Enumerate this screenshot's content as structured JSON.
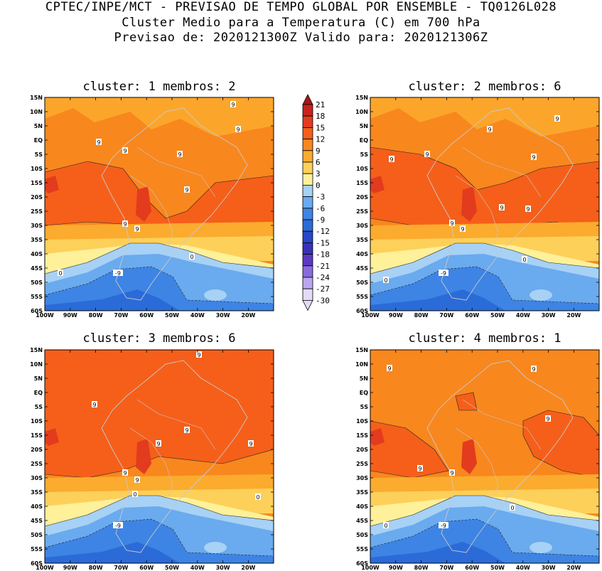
{
  "header": {
    "line1": "CPTEC/INPE/MCT - PREVISAO DE TEMPO GLOBAL POR ENSEMBLE - TQ0126L028",
    "line2": "Cluster Medio para a Temperatura (C) em 700 hPa",
    "line3": "Previsao de: 2020121300Z   Valido para: 2020121306Z"
  },
  "panels": [
    {
      "title": "cluster: 1  membros: 2"
    },
    {
      "title": "cluster: 2  membros: 6"
    },
    {
      "title": "cluster: 3  membros: 6"
    },
    {
      "title": "cluster: 4  membros: 1"
    }
  ],
  "lat_ticks": [
    "15N",
    "10N",
    "5N",
    "EQ",
    "5S",
    "10S",
    "15S",
    "20S",
    "25S",
    "30S",
    "35S",
    "40S",
    "45S",
    "50S",
    "55S",
    "60S"
  ],
  "lon_ticks": [
    "100W",
    "90W",
    "80W",
    "70W",
    "60W",
    "50W",
    "40W",
    "30W",
    "20W"
  ],
  "colorbar": {
    "labels": [
      "21",
      "18",
      "15",
      "12",
      "9",
      "6",
      "3",
      "0",
      "-3",
      "-6",
      "-9",
      "-12",
      "-15",
      "-18",
      "-21",
      "-24",
      "-27",
      "-30"
    ],
    "colors": {
      "c21": "#a31919",
      "c18": "#c8221f",
      "c15": "#e33b1e",
      "c12": "#f55f1a",
      "c9": "#f8871e",
      "c6": "#fbab2e",
      "c3": "#fdd05a",
      "c0": "#fff09a",
      "cm3": "#a7d1f5",
      "cm6": "#6aaaee",
      "cm9": "#3d84e4",
      "cm12": "#2b6bd8",
      "cm15": "#2746c8",
      "cm18": "#3931b8",
      "cm21": "#5b39c4",
      "cm24": "#8a6ae0",
      "cm27": "#b9a6ef",
      "cm30": "#e3dcf7"
    }
  },
  "contour_labels": {
    "nine": "9",
    "zero": "0",
    "minus_nine": "-9"
  }
}
